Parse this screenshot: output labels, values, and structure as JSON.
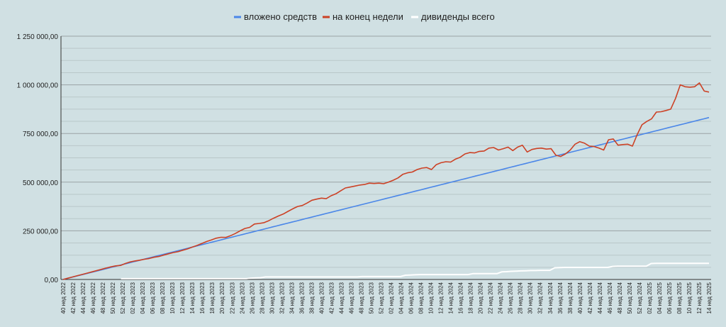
{
  "chart_data": {
    "type": "line",
    "title": "",
    "xlabel": "",
    "ylabel": "",
    "ylim": [
      0,
      1250000
    ],
    "y_ticks": [
      0,
      250000,
      500000,
      750000,
      1000000,
      1250000
    ],
    "y_tick_labels": [
      "0,00",
      "250 000,00",
      "500 000,00",
      "750 000,00",
      "1 000 000,00",
      "1 250 000,00"
    ],
    "x_tick_labels": [
      "40 нед 2022",
      "42 нед 2022",
      "44 нед 2022",
      "46 нед 2022",
      "48 нед 2022",
      "50 нед 2022",
      "52 нед 2022",
      "02 нед 2023",
      "04 нед 2023",
      "06 нед 2023",
      "08 нед 2023",
      "10 нед 2023",
      "12 нед 2023",
      "14 нед 2023",
      "16 нед 2023",
      "18 нед 2023",
      "20 нед 2023",
      "22 нед 2023",
      "24 нед 2023",
      "26 нед 2023",
      "28 нед 2023",
      "30 нед 2023",
      "32 нед 2023",
      "34 нед 2023",
      "36 нед 2023",
      "38 нед 2023",
      "40 нед 2023",
      "42 нед 2023",
      "44 нед 2023",
      "46 нед 2023",
      "48 нед 2023",
      "50 нед 2023",
      "52 нед 2023",
      "02 нед 2024",
      "04 нед 2024",
      "06 нед 2024",
      "08 нед 2024",
      "10 нед 2024",
      "12 нед 2024",
      "14 нед 2024",
      "16 нед 2024",
      "18 нед 2024",
      "20 нед 2024",
      "22 нед 2024",
      "24 нед 2024",
      "26 нед 2024",
      "28 нед 2024",
      "30 нед 2024",
      "32 нед 2024",
      "34 нед 2024",
      "36 нед 2024",
      "38 нед 2024",
      "40 нед 2024",
      "42 нед 2024",
      "44 нед 2024",
      "46 нед 2024",
      "48 нед 2024",
      "50 нед 2024",
      "52 нед 2024",
      "02 нед 2025",
      "04 нед 2025",
      "06 нед 2025",
      "08 нед 2025",
      "10 нед 2025",
      "12 нед 2025",
      "14 нед 2025"
    ],
    "legend": {
      "position": "top"
    },
    "grid": true,
    "series": [
      {
        "name": "вложено средств",
        "color": "#4a86e8",
        "values": [
          0,
          6400,
          12800,
          19200,
          25600,
          32000,
          38400,
          44800,
          51200,
          57600,
          64000,
          70400,
          76800,
          83200,
          89600,
          96000,
          102400,
          108800,
          115200,
          121600,
          128000,
          134400,
          140800,
          147200,
          153600,
          160000,
          166400,
          172800,
          179200,
          185600,
          192000,
          198400,
          204800,
          211200,
          217600,
          224000,
          230400,
          236800,
          243200,
          249600,
          256000,
          262400,
          268800,
          275200,
          281600,
          288000,
          294400,
          300800,
          307200,
          313600,
          320000,
          326400,
          332800,
          339200,
          345600,
          352000,
          358400,
          364800,
          371200,
          377600,
          384000,
          390400,
          396800,
          403200,
          409600,
          416000,
          422400,
          428800,
          435200,
          441600,
          448000,
          454400,
          460800,
          467200,
          473600,
          480000,
          486400,
          492800,
          499200,
          505600,
          512000,
          518400,
          524800,
          531200,
          537600,
          544000,
          550400,
          556800,
          563200,
          569600,
          576000,
          582400,
          588800,
          595200,
          601600,
          608000,
          614400,
          620800,
          627200,
          633600,
          640000,
          646400,
          652800,
          659200,
          665600,
          672000,
          678400,
          684800,
          691200,
          697600,
          704000,
          710400,
          716800,
          723200,
          729600,
          736000,
          742400,
          748800,
          755200,
          761600,
          768000,
          774400,
          780800,
          787200,
          793600,
          800000,
          806400,
          812800,
          819200,
          825600,
          832000
        ]
      },
      {
        "name": "на конец недели",
        "color": "#cc4125",
        "values": [
          0,
          6500,
          13000,
          19500,
          26000,
          32500,
          39000,
          45500,
          52000,
          58500,
          65000,
          70000,
          72000,
          82000,
          90000,
          95000,
          99000,
          104000,
          108000,
          114000,
          118000,
          125000,
          132000,
          138000,
          143000,
          150000,
          157000,
          166000,
          175000,
          185000,
          195000,
          203000,
          212000,
          217000,
          216000,
          225000,
          236000,
          250000,
          262000,
          268000,
          285000,
          288000,
          292000,
          302000,
          315000,
          326000,
          336000,
          350000,
          363000,
          375000,
          380000,
          393000,
          407000,
          413000,
          418000,
          415000,
          430000,
          440000,
          455000,
          470000,
          475000,
          480000,
          485000,
          488000,
          495000,
          493000,
          495000,
          492000,
          500000,
          510000,
          522000,
          540000,
          548000,
          552000,
          565000,
          572000,
          575000,
          565000,
          590000,
          600000,
          605000,
          603000,
          618000,
          628000,
          645000,
          652000,
          650000,
          658000,
          660000,
          675000,
          678000,
          665000,
          672000,
          680000,
          662000,
          680000,
          690000,
          655000,
          668000,
          673000,
          675000,
          670000,
          672000,
          638000,
          632000,
          645000,
          665000,
          695000,
          708000,
          700000,
          685000,
          683000,
          675000,
          665000,
          718000,
          722000,
          690000,
          693000,
          695000,
          685000,
          745000,
          795000,
          812000,
          825000,
          860000,
          862000,
          868000,
          875000,
          930000,
          1000000,
          990000,
          988000,
          990000,
          1010000,
          968000,
          963000
        ]
      },
      {
        "name": "дивиденды всего",
        "color": "#ffffff",
        "values": [
          null,
          null,
          null,
          null,
          null,
          null,
          null,
          null,
          null,
          null,
          null,
          null,
          4000,
          4000,
          4000,
          4000,
          4000,
          4000,
          4000,
          4000,
          4000,
          4000,
          4000,
          4000,
          4000,
          4000,
          4000,
          4000,
          4000,
          4000,
          4000,
          4000,
          4000,
          4000,
          4000,
          4000,
          4000,
          4000,
          4000,
          7000,
          8000,
          9000,
          13000,
          13000,
          13000,
          13000,
          13000,
          13000,
          13000,
          13000,
          13000,
          13000,
          13000,
          13000,
          13000,
          13000,
          13000,
          13000,
          13000,
          13000,
          13000,
          13000,
          15000,
          15000,
          15000,
          15000,
          15000,
          15000,
          15000,
          15000,
          15000,
          22000,
          23000,
          24000,
          25000,
          25000,
          25000,
          25000,
          25000,
          25000,
          25000,
          25000,
          25000,
          25000,
          25000,
          30000,
          30000,
          30000,
          30000,
          30000,
          30000,
          39000,
          40000,
          42000,
          43000,
          44000,
          45000,
          46000,
          46000,
          47000,
          47000,
          47000,
          60000,
          61000,
          62000,
          62000,
          62000,
          62000,
          62000,
          62000,
          62000,
          62000,
          62000,
          62000,
          67000,
          68000,
          68000,
          68000,
          68000,
          68000,
          68000,
          68000,
          82000,
          83000,
          83000,
          83000,
          83000,
          83000,
          83000,
          83000,
          83000,
          83000,
          83000,
          83000,
          83000
        ]
      }
    ]
  }
}
